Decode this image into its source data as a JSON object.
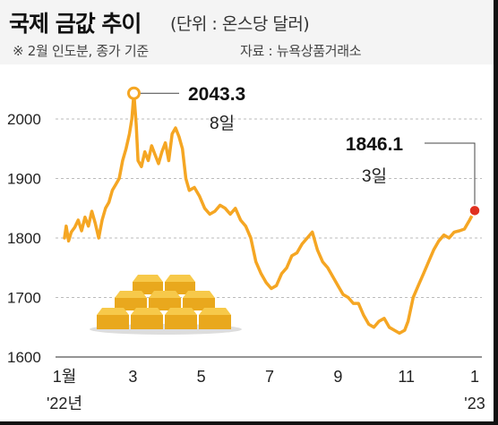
{
  "header": {
    "title": "국제 금값 추이",
    "unit": "(단위 : 온스당 달러)",
    "note": "※ 2월 인도분, 종가 기준",
    "source": "자료 : 뉴욕상품거래소"
  },
  "colors": {
    "line": "#f5a623",
    "grid": "#bbbbbb",
    "marker_end": "#e03020",
    "header_bg": "#f4f4f4",
    "gold_bar": "#e9a81d"
  },
  "icons": [
    "gold-bars-icon"
  ],
  "chart_data": {
    "type": "line",
    "title": "국제 금값 추이",
    "ylabel": "",
    "xlabel": "",
    "ylim": [
      1600,
      2100
    ],
    "yticks": [
      1600,
      1700,
      1800,
      1900,
      2000
    ],
    "xticks": [
      {
        "month": 1,
        "label": "1월",
        "sublabel": "'22년"
      },
      {
        "month": 3,
        "label": "3",
        "sublabel": ""
      },
      {
        "month": 5,
        "label": "5",
        "sublabel": ""
      },
      {
        "month": 7,
        "label": "7",
        "sublabel": ""
      },
      {
        "month": 9,
        "label": "9",
        "sublabel": ""
      },
      {
        "month": 11,
        "label": "11",
        "sublabel": ""
      },
      {
        "month": 13,
        "label": "1",
        "sublabel": "'23"
      }
    ],
    "grid": true,
    "series": [
      {
        "values_month_x": [
          [
            1.0,
            1800
          ],
          [
            1.05,
            1820
          ],
          [
            1.12,
            1795
          ],
          [
            1.2,
            1810
          ],
          [
            1.3,
            1818
          ],
          [
            1.4,
            1830
          ],
          [
            1.5,
            1812
          ],
          [
            1.6,
            1835
          ],
          [
            1.7,
            1820
          ],
          [
            1.8,
            1845
          ],
          [
            1.9,
            1825
          ],
          [
            2.0,
            1800
          ],
          [
            2.1,
            1830
          ],
          [
            2.2,
            1850
          ],
          [
            2.3,
            1860
          ],
          [
            2.4,
            1880
          ],
          [
            2.5,
            1890
          ],
          [
            2.6,
            1900
          ],
          [
            2.7,
            1930
          ],
          [
            2.8,
            1950
          ],
          [
            2.9,
            1975
          ],
          [
            2.97,
            2000
          ],
          [
            3.03,
            2043.3
          ],
          [
            3.1,
            1990
          ],
          [
            3.15,
            1930
          ],
          [
            3.25,
            1920
          ],
          [
            3.35,
            1945
          ],
          [
            3.45,
            1930
          ],
          [
            3.55,
            1955
          ],
          [
            3.65,
            1940
          ],
          [
            3.75,
            1925
          ],
          [
            3.85,
            1945
          ],
          [
            3.95,
            1960
          ],
          [
            4.05,
            1930
          ],
          [
            4.15,
            1975
          ],
          [
            4.25,
            1985
          ],
          [
            4.35,
            1970
          ],
          [
            4.45,
            1950
          ],
          [
            4.55,
            1900
          ],
          [
            4.65,
            1880
          ],
          [
            4.8,
            1885
          ],
          [
            4.95,
            1870
          ],
          [
            5.1,
            1850
          ],
          [
            5.25,
            1840
          ],
          [
            5.4,
            1845
          ],
          [
            5.55,
            1855
          ],
          [
            5.7,
            1850
          ],
          [
            5.85,
            1840
          ],
          [
            6.0,
            1850
          ],
          [
            6.15,
            1830
          ],
          [
            6.3,
            1820
          ],
          [
            6.45,
            1800
          ],
          [
            6.6,
            1760
          ],
          [
            6.75,
            1740
          ],
          [
            6.9,
            1725
          ],
          [
            7.05,
            1715
          ],
          [
            7.2,
            1720
          ],
          [
            7.35,
            1740
          ],
          [
            7.5,
            1750
          ],
          [
            7.65,
            1770
          ],
          [
            7.8,
            1775
          ],
          [
            7.95,
            1790
          ],
          [
            8.1,
            1800
          ],
          [
            8.25,
            1810
          ],
          [
            8.4,
            1780
          ],
          [
            8.55,
            1760
          ],
          [
            8.7,
            1750
          ],
          [
            8.85,
            1735
          ],
          [
            9.0,
            1720
          ],
          [
            9.15,
            1705
          ],
          [
            9.3,
            1700
          ],
          [
            9.45,
            1690
          ],
          [
            9.6,
            1690
          ],
          [
            9.75,
            1670
          ],
          [
            9.9,
            1655
          ],
          [
            10.05,
            1650
          ],
          [
            10.2,
            1660
          ],
          [
            10.35,
            1665
          ],
          [
            10.5,
            1650
          ],
          [
            10.65,
            1645
          ],
          [
            10.8,
            1640
          ],
          [
            10.95,
            1645
          ],
          [
            11.05,
            1660
          ],
          [
            11.2,
            1700
          ],
          [
            11.35,
            1720
          ],
          [
            11.5,
            1740
          ],
          [
            11.65,
            1760
          ],
          [
            11.8,
            1780
          ],
          [
            11.95,
            1795
          ],
          [
            12.1,
            1805
          ],
          [
            12.25,
            1800
          ],
          [
            12.4,
            1810
          ],
          [
            12.55,
            1812
          ],
          [
            12.7,
            1815
          ],
          [
            12.85,
            1830
          ],
          [
            13.0,
            1846.1
          ]
        ],
        "annotations": [
          {
            "value": "2043.3",
            "label": "8일",
            "month": 3.03
          },
          {
            "value": "1846.1",
            "label": "3일",
            "month": 13.0
          }
        ]
      }
    ]
  }
}
